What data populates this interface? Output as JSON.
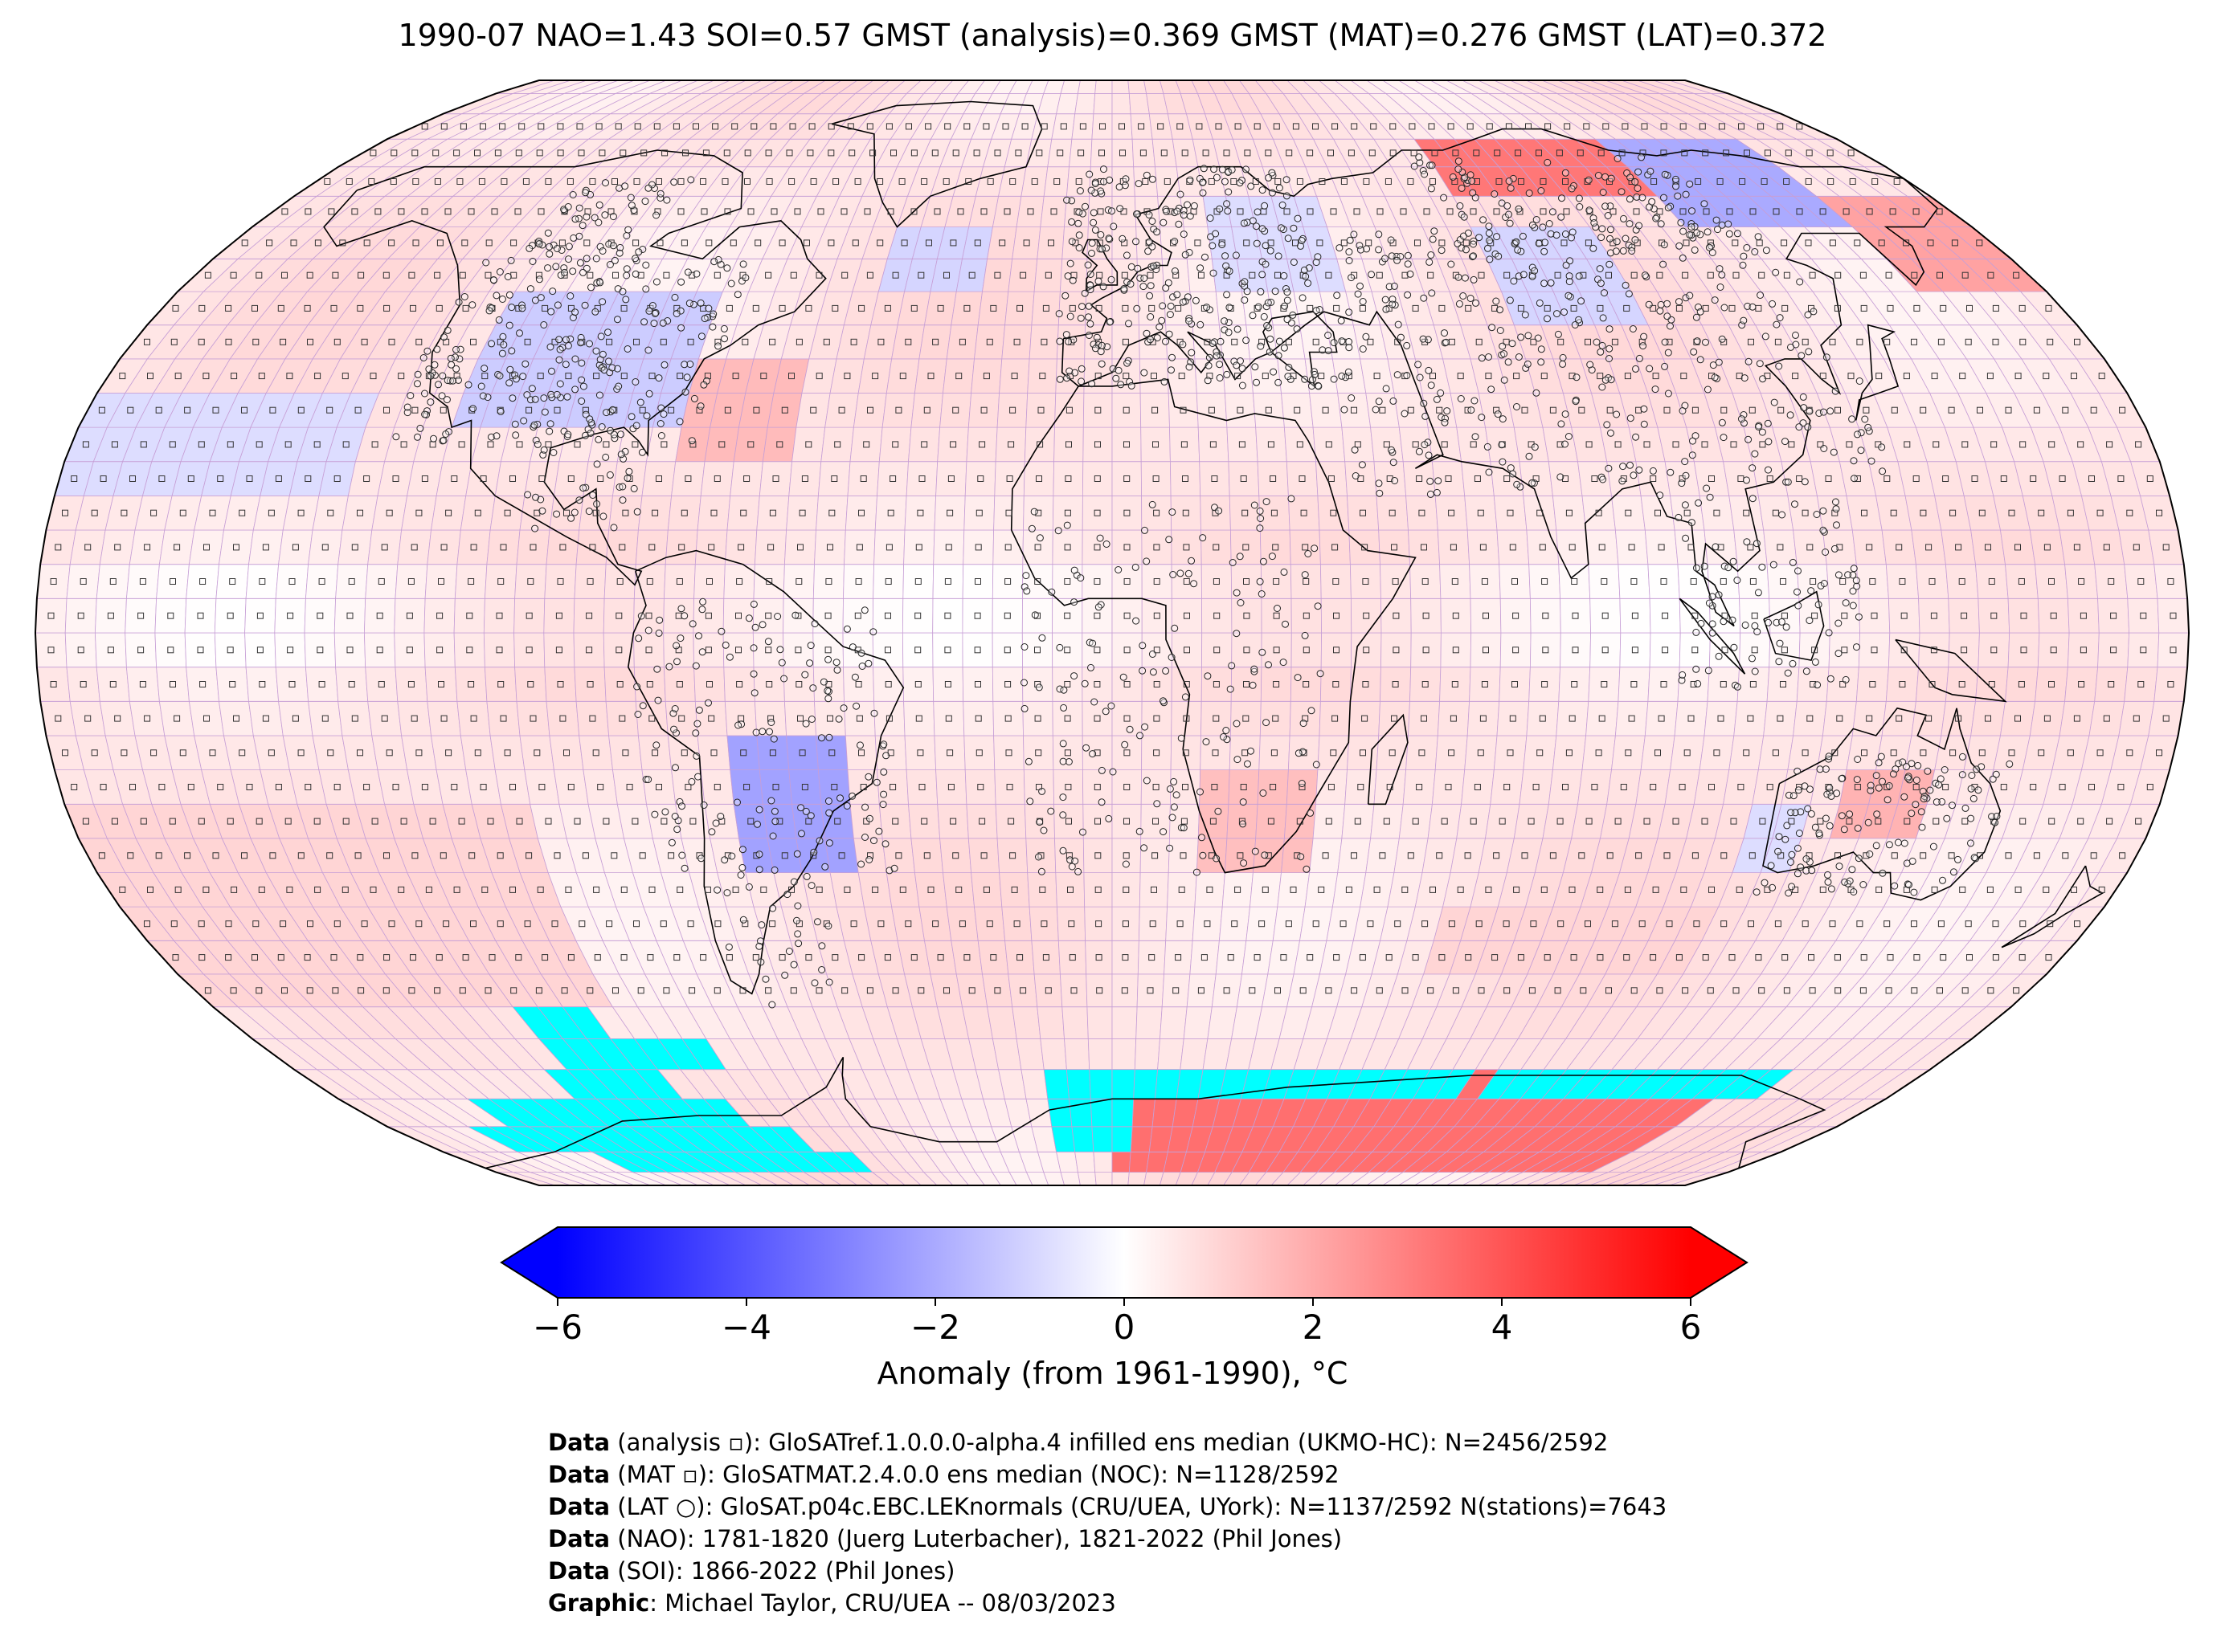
{
  "header": {
    "title": "1990-07 NAO=1.43 SOI=0.57 GMST (analysis)=0.369 GMST (MAT)=0.276 GMST (LAT)=0.372"
  },
  "map": {
    "projection": "Robinson",
    "grid_resolution_deg": 5,
    "colors": {
      "sea_ice_mask": "#00ffff",
      "gridlines": "#c79fd6",
      "coastlines": "#000000",
      "outline": "#000000"
    },
    "anomaly_regions": [
      {
        "name": "north-america-cool",
        "lon": [
          -115,
          -75
        ],
        "lat": [
          30,
          50
        ],
        "value": -1.2
      },
      {
        "name": "north-pacific-cool-band",
        "lon": [
          -180,
          -130
        ],
        "lat": [
          20,
          35
        ],
        "value": -0.8
      },
      {
        "name": "gulf-stream-warm",
        "lon": [
          -75,
          -55
        ],
        "lat": [
          25,
          40
        ],
        "value": 1.6
      },
      {
        "name": "north-atlantic-cool",
        "lon": [
          -45,
          -25
        ],
        "lat": [
          50,
          60
        ],
        "value": -1.0
      },
      {
        "name": "siberia-warm",
        "lon": [
          75,
          120
        ],
        "lat": [
          65,
          75
        ],
        "value": 3.2
      },
      {
        "name": "east-siberia-cool",
        "lon": [
          120,
          155
        ],
        "lat": [
          60,
          72
        ],
        "value": -2.0
      },
      {
        "name": "central-asia-cool",
        "lon": [
          75,
          100
        ],
        "lat": [
          45,
          60
        ],
        "value": -1.0
      },
      {
        "name": "far-east-warm",
        "lon": [
          155,
          180
        ],
        "lat": [
          50,
          65
        ],
        "value": 2.2
      },
      {
        "name": "east-europe-cool",
        "lon": [
          20,
          45
        ],
        "lat": [
          50,
          65
        ],
        "value": -0.8
      },
      {
        "name": "south-america-cool",
        "lon": [
          -65,
          -45
        ],
        "lat": [
          -35,
          -15
        ],
        "value": -2.2
      },
      {
        "name": "southern-africa-warm",
        "lon": [
          15,
          35
        ],
        "lat": [
          -35,
          -20
        ],
        "value": 1.5
      },
      {
        "name": "australia-warm",
        "lon": [
          125,
          140
        ],
        "lat": [
          -30,
          -20
        ],
        "value": 1.8
      },
      {
        "name": "australia-west-cool",
        "lon": [
          110,
          120
        ],
        "lat": [
          -35,
          -25
        ],
        "value": -0.8
      },
      {
        "name": "antarctica-warm",
        "lon": [
          0,
          140
        ],
        "lat": [
          -85,
          -65
        ],
        "value": 3.4
      },
      {
        "name": "south-indian-warm",
        "lon": [
          60,
          110
        ],
        "lat": [
          -50,
          -40
        ],
        "value": 1.0
      },
      {
        "name": "south-pacific-warm",
        "lon": [
          -180,
          -100
        ],
        "lat": [
          -55,
          -25
        ],
        "value": 1.0
      }
    ],
    "background_anomaly": 0.6
  },
  "colorbar": {
    "min": -6,
    "max": 6,
    "extend": "both",
    "colors": {
      "low": "#0000ff",
      "mid": "#ffffff",
      "high": "#ff0000"
    },
    "ticks": [
      "−6",
      "−4",
      "−2",
      "0",
      "2",
      "4",
      "6"
    ],
    "label": "Anomaly (from 1961-1990), °C"
  },
  "credits": [
    {
      "key": "Data",
      "text": " (analysis ▫): GloSATref.1.0.0.0-alpha.4 infilled ens median (UKMO-HC): N=2456/2592"
    },
    {
      "key": "Data",
      "text": " (MAT ▫): GloSATMAT.2.4.0.0 ens median (NOC): N=1128/2592"
    },
    {
      "key": "Data",
      "text": " (LAT ○): GloSAT.p04c.EBC.LEKnormals (CRU/UEA, UYork): N=1137/2592 N(stations)=7643"
    },
    {
      "key": "Data",
      "text": " (NAO): 1781-1820 (Juerg Luterbacher), 1821-2022 (Phil Jones)"
    },
    {
      "key": "Data",
      "text": " (SOI): 1866-2022 (Phil Jones)"
    },
    {
      "key": "Graphic",
      "text": ": Michael Taylor, CRU/UEA -- 08/03/2023"
    }
  ]
}
